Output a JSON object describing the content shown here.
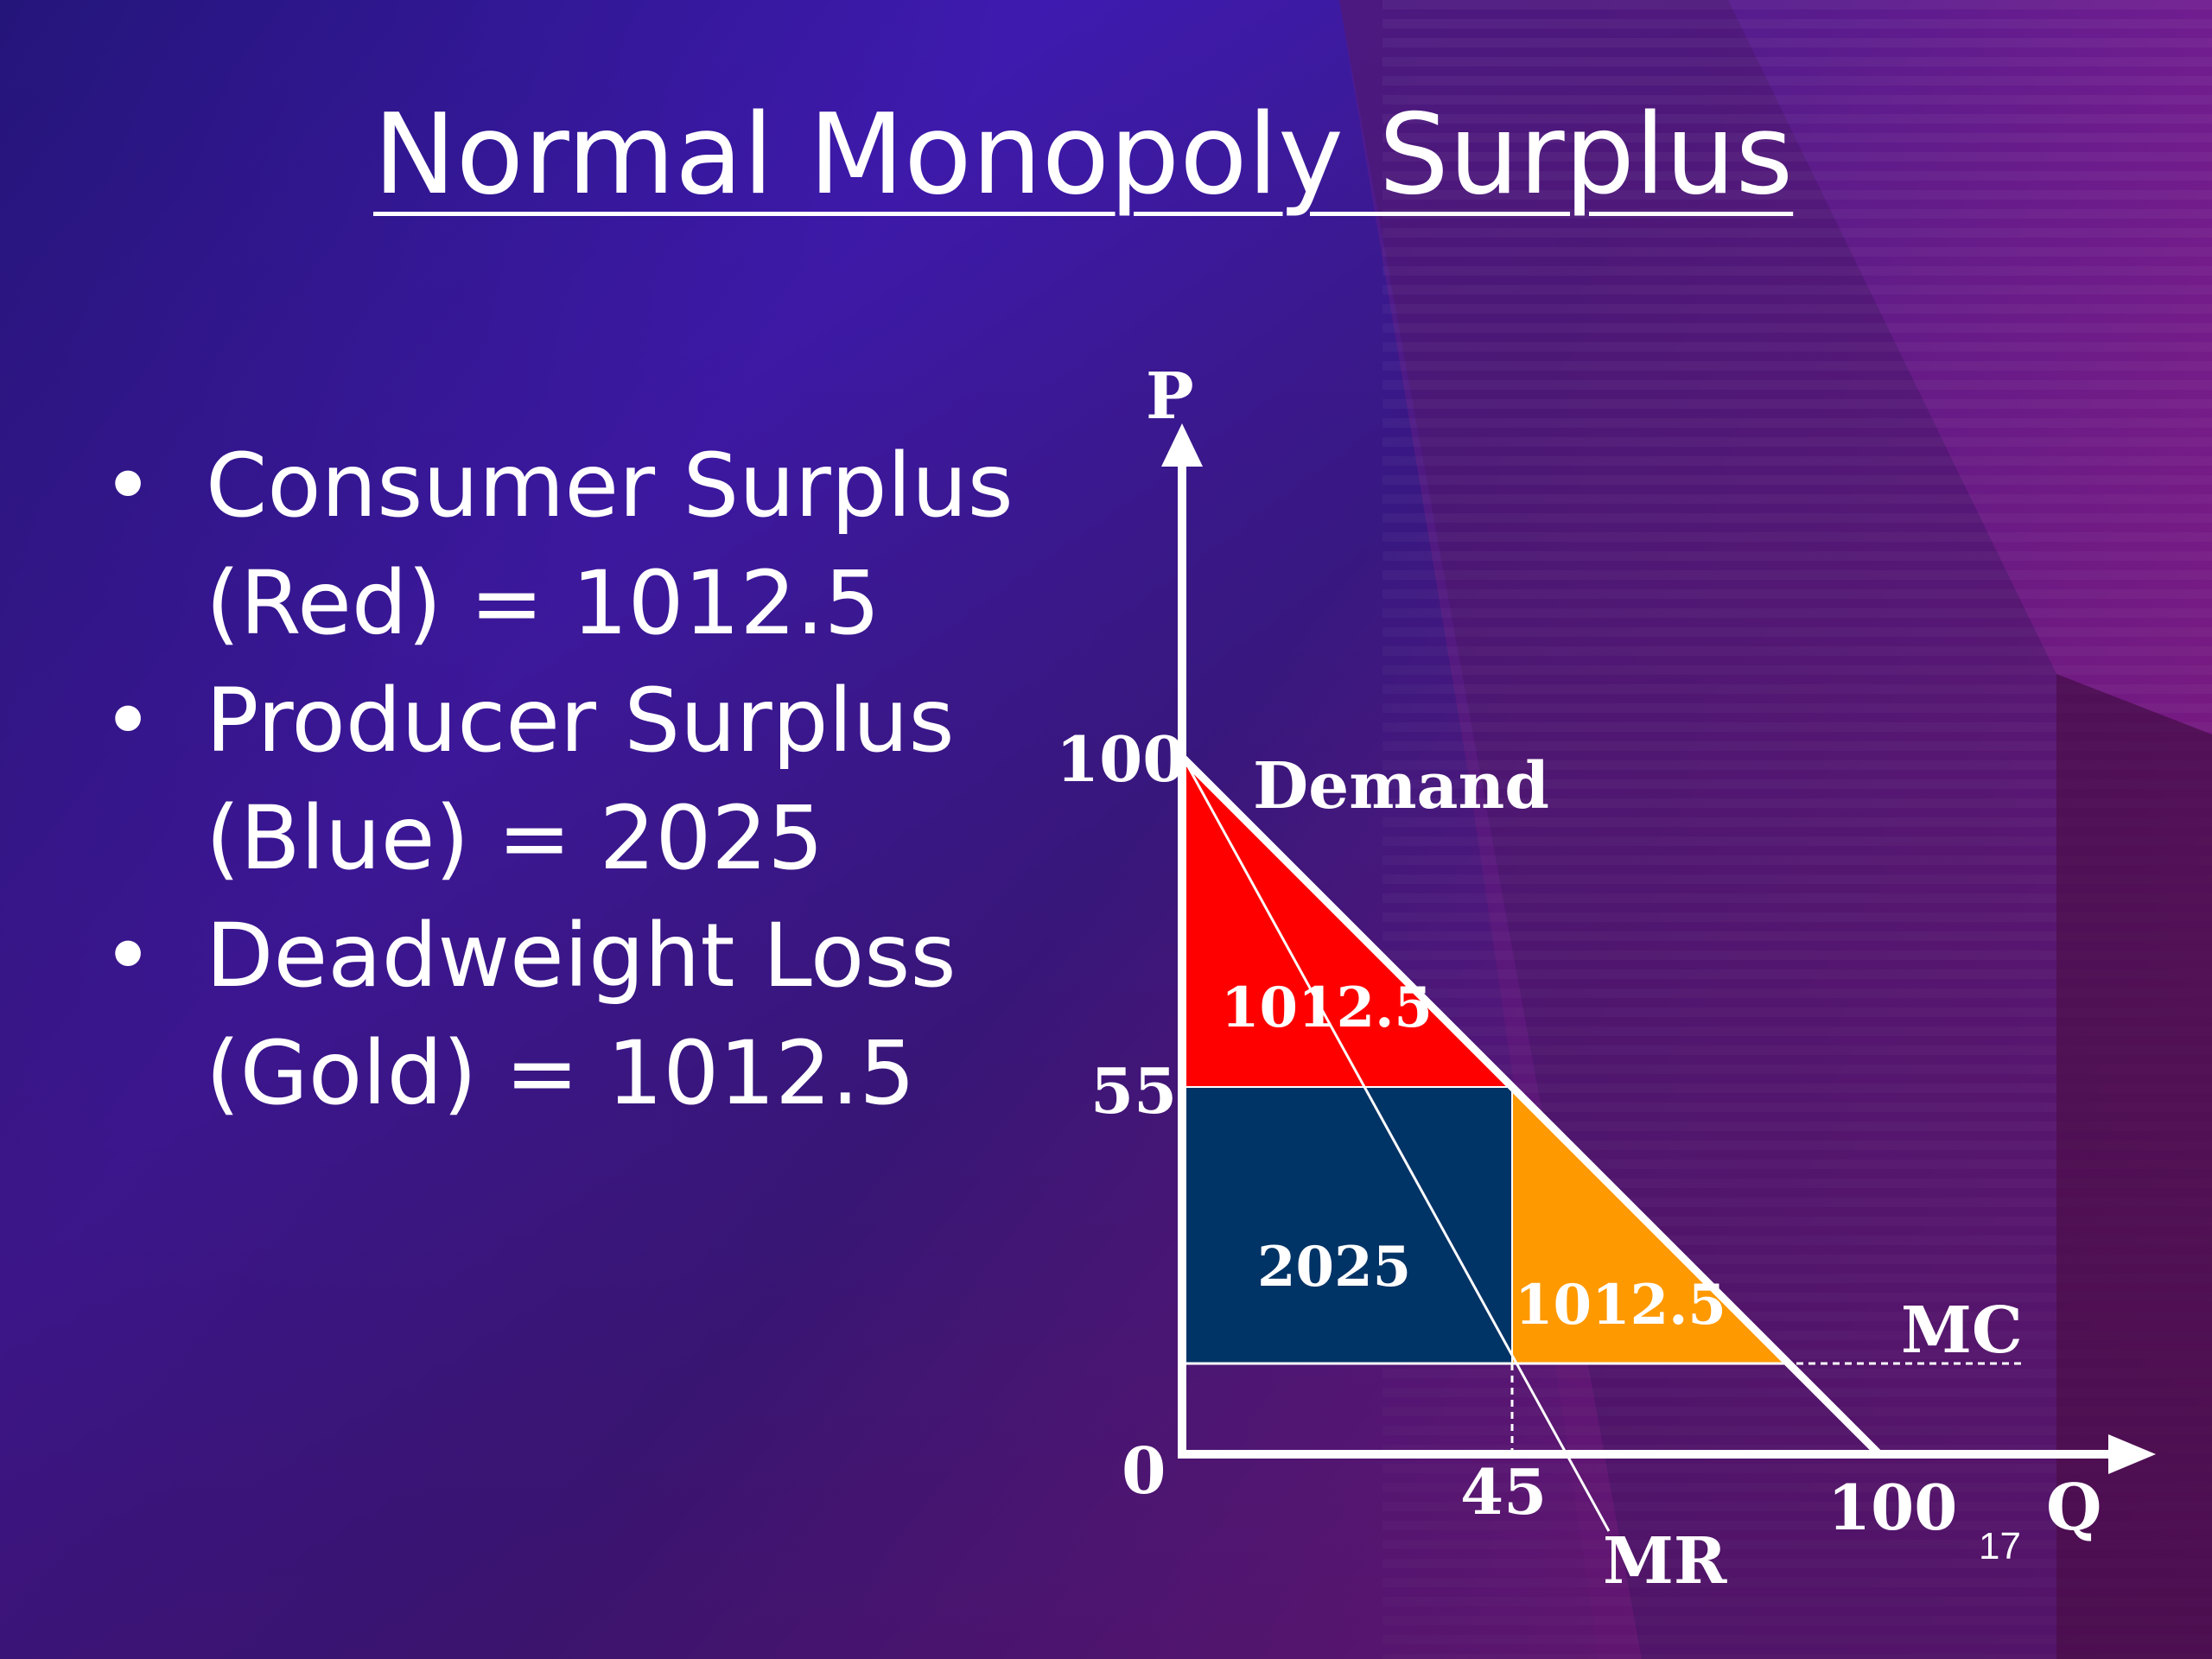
{
  "slide": {
    "title": "Normal Monopoly Surplus",
    "page_number": "17"
  },
  "bullets": [
    {
      "line1": "Consumer Surplus",
      "line2": "(Red) = 1012.5"
    },
    {
      "line1": "Producer Surplus",
      "line2": "(Blue) = 2025"
    },
    {
      "line1": "Deadweight Loss",
      "line2": "(Gold) = 1012.5"
    }
  ],
  "diagram": {
    "axis_y_label": "P",
    "axis_x_label": "Q",
    "origin_label": "0",
    "p_tick_100": "100",
    "p_tick_55": "55",
    "q_tick_45": "45",
    "q_tick_100": "100",
    "demand_label": "Demand",
    "mr_label": "MR",
    "mc_label": "MC",
    "consumer_surplus_value": "1012.5",
    "producer_surplus_value": "2025",
    "deadweight_loss_value": "1012.5"
  },
  "colors": {
    "consumer_surplus": "#ff0000",
    "producer_surplus": "#003366",
    "deadweight_loss": "#ff9900",
    "background_left": "#3a1a9a",
    "background_right": "#a0208f"
  }
}
